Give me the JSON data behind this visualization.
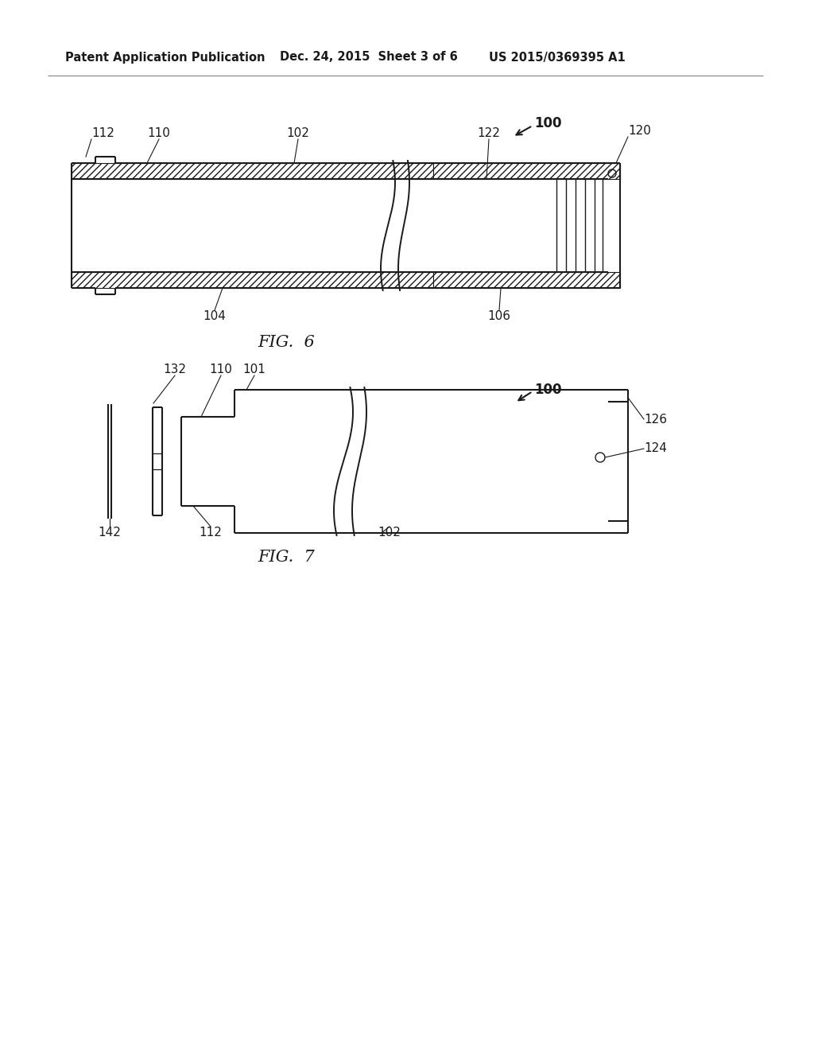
{
  "bg_color": "#ffffff",
  "line_color": "#1a1a1a",
  "header_left": "Patent Application Publication",
  "header_mid": "Dec. 24, 2015  Sheet 3 of 6",
  "header_right": "US 2015/0369395 A1",
  "fig6_title": "FIG.  6",
  "fig7_title": "FIG.  7"
}
